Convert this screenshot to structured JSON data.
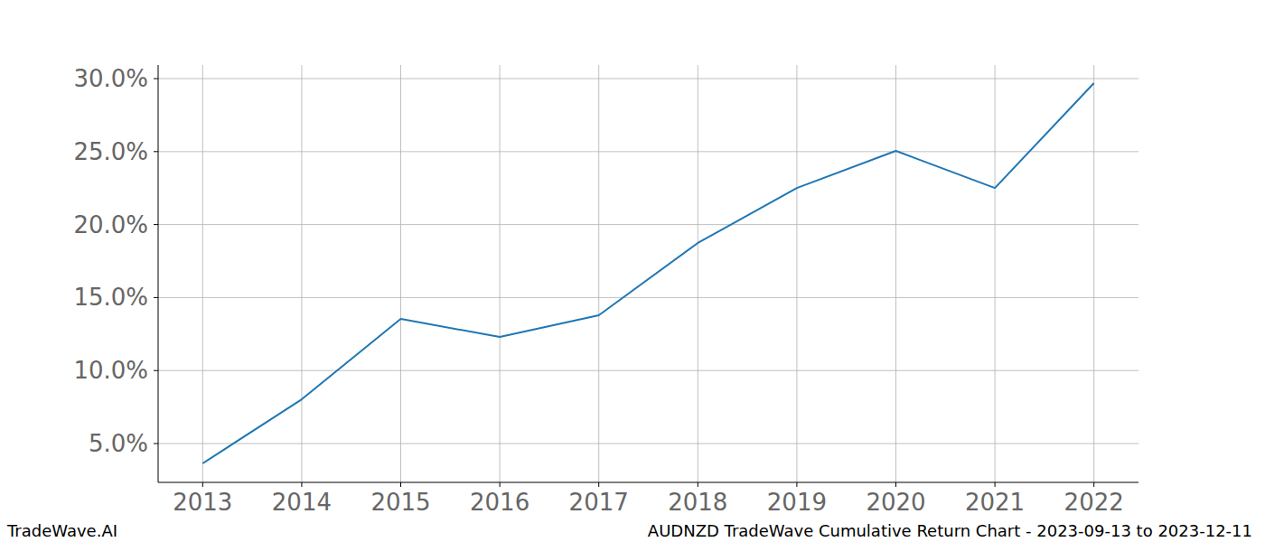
{
  "chart_data": {
    "type": "line",
    "title": "AUDNZD TradeWave Cumulative Return Chart - 2023-09-13 to 2023-12-11",
    "credit": "TradeWave.AI",
    "x": [
      2013,
      2014,
      2015,
      2016,
      2017,
      2018,
      2019,
      2020,
      2021,
      2022
    ],
    "series": [
      {
        "name": "AUDNZD",
        "color": "#1f77b4",
        "values": [
          3.64,
          8.03,
          13.54,
          12.3,
          13.79,
          18.74,
          22.51,
          25.05,
          22.51,
          29.69
        ]
      }
    ],
    "xlim": [
      2012.55,
      2022.45
    ],
    "xticks": [
      2013,
      2014,
      2015,
      2016,
      2017,
      2018,
      2019,
      2020,
      2021,
      2022
    ],
    "ylim": [
      2.34,
      30.93
    ],
    "yticks": [
      {
        "value": 5,
        "label": "5.0%"
      },
      {
        "value": 10,
        "label": "10.0%"
      },
      {
        "value": 15,
        "label": "15.0%"
      },
      {
        "value": 20,
        "label": "20.0%"
      },
      {
        "value": 25,
        "label": "25.0%"
      },
      {
        "value": 30,
        "label": "30.0%"
      }
    ],
    "grid": true
  }
}
